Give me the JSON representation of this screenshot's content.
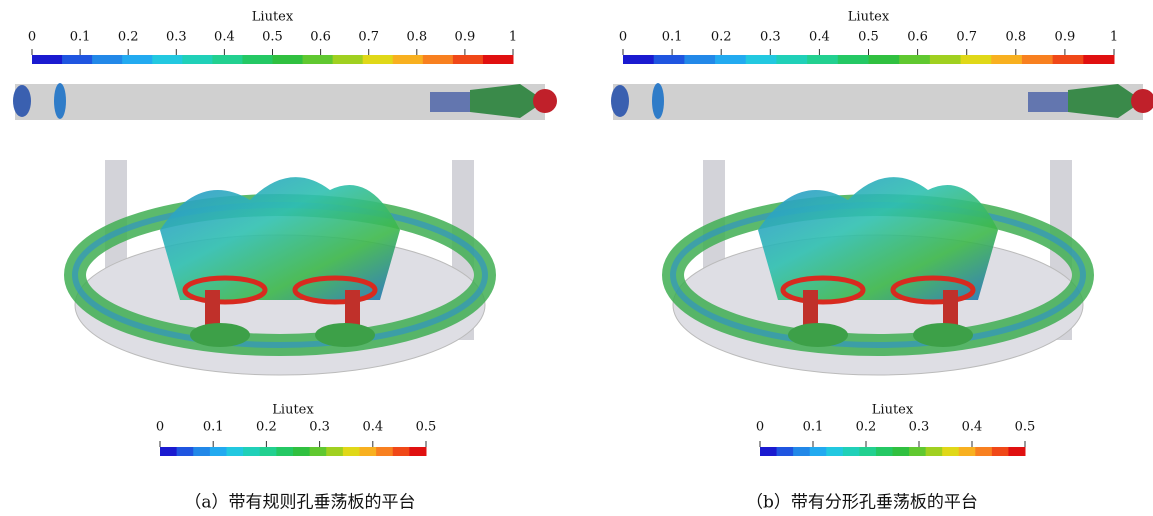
{
  "panels": [
    {
      "colorbars": [
        {
          "title": "Liutex",
          "lim": [
            0,
            1
          ],
          "ticks": [
            0,
            0.1,
            0.2,
            0.3,
            0.4,
            0.5,
            0.6,
            0.7,
            0.8,
            0.9,
            1
          ]
        },
        {
          "title": "Liutex",
          "lim": [
            0,
            0.5
          ],
          "ticks": [
            0,
            0.1,
            0.2,
            0.3,
            0.4,
            0.5
          ]
        }
      ],
      "caption": "（a）带有规则孔垂荡板的平台"
    },
    {
      "colorbars": [
        {
          "title": "Liutex",
          "lim": [
            0,
            1
          ],
          "ticks": [
            0,
            0.1,
            0.2,
            0.3,
            0.4,
            0.5,
            0.6,
            0.7,
            0.8,
            0.9,
            1
          ]
        },
        {
          "title": "Liutex",
          "lim": [
            0,
            0.5
          ],
          "ticks": [
            0,
            0.1,
            0.2,
            0.3,
            0.4,
            0.5
          ]
        }
      ],
      "caption": "（b）带有分形孔垂荡板的平台"
    }
  ]
}
